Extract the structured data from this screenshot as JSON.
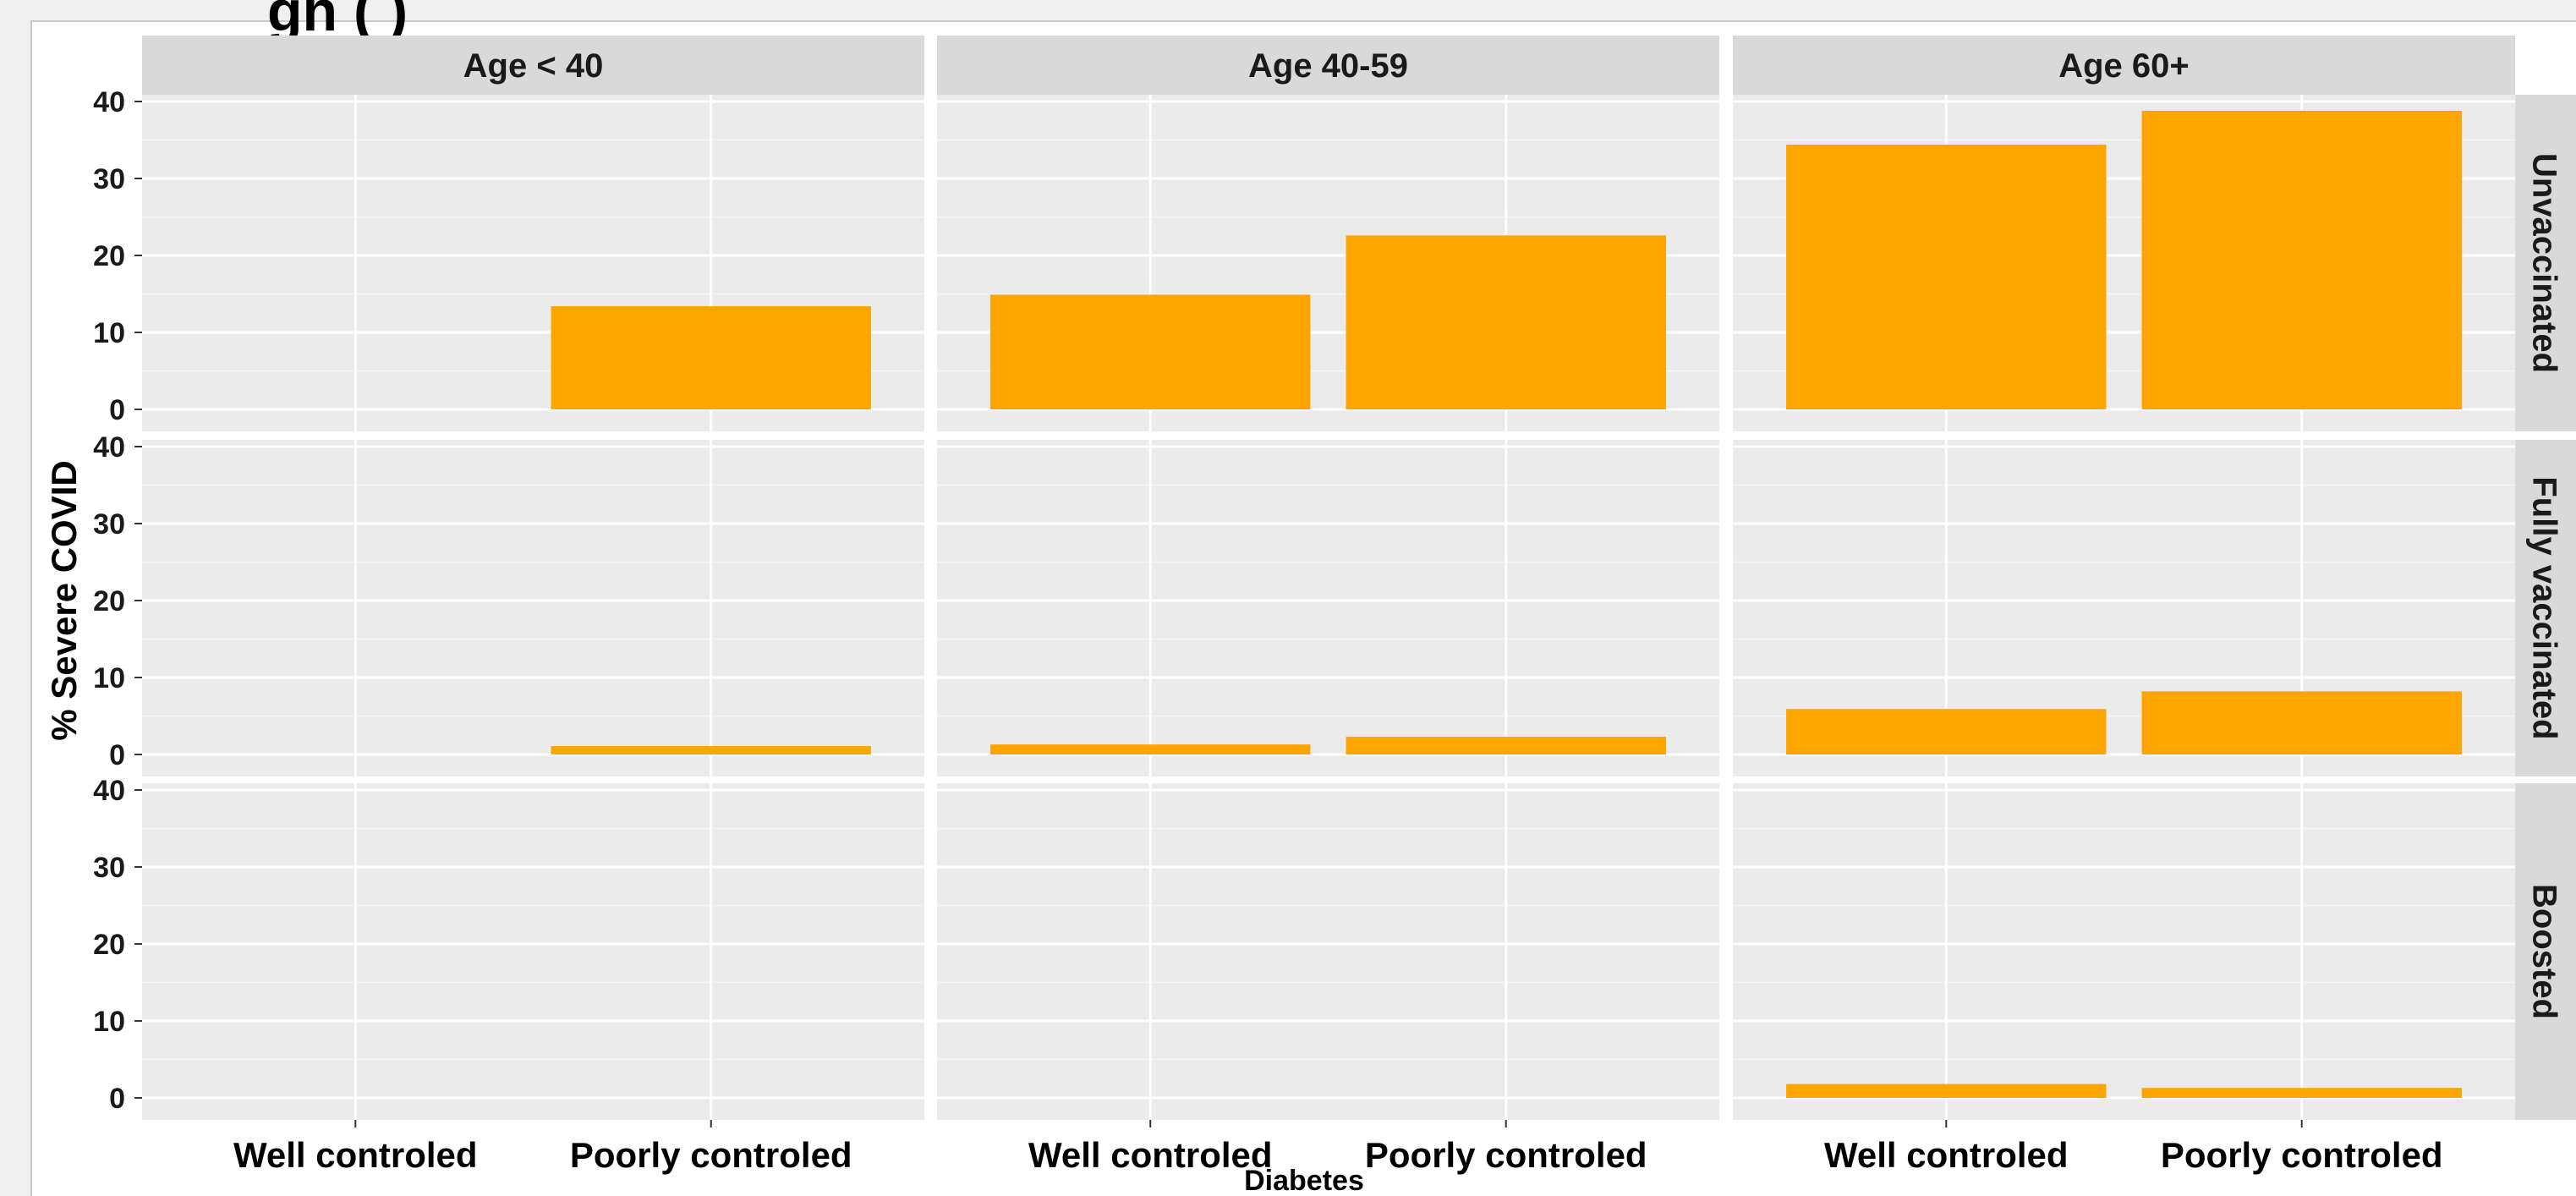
{
  "title_fragment": "gh    (                  )",
  "chart_data": {
    "type": "bar",
    "xlabel": "Diabetes",
    "ylabel": "% Severe COVID",
    "categories": [
      "Well controled",
      "Poorly controled"
    ],
    "ylim": [
      0,
      41
    ],
    "yticks": [
      0,
      10,
      20,
      30,
      40
    ],
    "grid": true,
    "bar_color": "#FFA500",
    "panel_bg": "#EBEBEB",
    "strip_bg": "#D9D9D9",
    "facet_columns": [
      "Age < 40",
      "Age 40-59",
      "Age 60+"
    ],
    "facet_rows": [
      "Unvaccinated",
      "Fully vaccinated",
      "Boosted"
    ],
    "panels": [
      {
        "row": "Unvaccinated",
        "column": "Age < 40",
        "values": [
          0,
          13.4
        ]
      },
      {
        "row": "Unvaccinated",
        "column": "Age 40-59",
        "values": [
          14.9,
          22.6
        ]
      },
      {
        "row": "Unvaccinated",
        "column": "Age 60+",
        "values": [
          34.4,
          38.8
        ]
      },
      {
        "row": "Fully vaccinated",
        "column": "Age < 40",
        "values": [
          0,
          1.1
        ]
      },
      {
        "row": "Fully vaccinated",
        "column": "Age 40-59",
        "values": [
          1.3,
          2.3
        ]
      },
      {
        "row": "Fully vaccinated",
        "column": "Age 60+",
        "values": [
          5.9,
          8.2
        ]
      },
      {
        "row": "Boosted",
        "column": "Age < 40",
        "values": [
          0,
          0
        ]
      },
      {
        "row": "Boosted",
        "column": "Age 40-59",
        "values": [
          0,
          0
        ]
      },
      {
        "row": "Boosted",
        "column": "Age 60+",
        "values": [
          1.8,
          1.3
        ]
      }
    ]
  }
}
